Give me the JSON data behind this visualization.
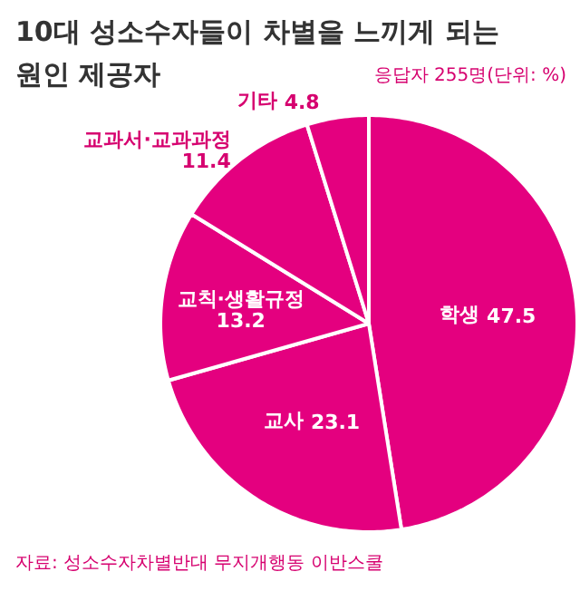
{
  "chart_data": {
    "type": "pie",
    "title": "10대 성소수자들이 차별을 느끼게 되는\n원인 제공자",
    "subtitle": "응답자 255명(단위: %)",
    "categories": [
      "학생",
      "교사",
      "교칙·생활규정",
      "교과서·교과과정",
      "기타"
    ],
    "values": [
      47.5,
      23.1,
      13.2,
      11.4,
      4.8
    ],
    "colors": [
      "#e4007f",
      "#e4007f",
      "#e4007f",
      "#e4007f",
      "#e4007f"
    ],
    "data_labels": true,
    "annotations": [
      "자료: 성소수자차별반대 무지개행동 이반스쿨"
    ]
  }
}
